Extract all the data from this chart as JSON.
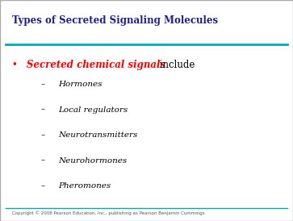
{
  "title": "Types of Secreted Signaling Molecules",
  "title_color": "#1F1F8B",
  "title_fontsize": 8.5,
  "line_color": "#00AAAA",
  "bg_color": "#FFFFFF",
  "border_color": "#AAAAAA",
  "bullet_text_bold_italic": "Secreted chemical signals",
  "bullet_text_bold_italic_color": "#FF0000",
  "bullet_text_normal": " include",
  "bullet_text_normal_color": "#000000",
  "bullet_fontsize": 8.5,
  "bullet_color": "#FF0000",
  "sub_items": [
    "Hormones",
    "Local regulators",
    "Neurotransmitters",
    "Neurohormones",
    "Pheromones"
  ],
  "sub_item_fontsize": 7.5,
  "sub_item_color": "#000000",
  "footer_text": "Copyright © 2008 Pearson Education, Inc., publishing as Pearson Benjamin Cummings",
  "footer_fontsize": 4.0,
  "footer_color": "#555555"
}
